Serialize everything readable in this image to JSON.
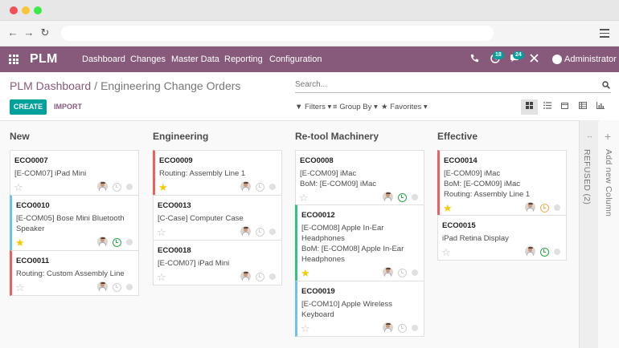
{
  "browser": {
    "dots": [
      "#f25056",
      "#fac536",
      "#39ea49"
    ]
  },
  "topbar": {
    "brand": "PLM",
    "menu": [
      "Dashboard",
      "Changes",
      "Master Data",
      "Reporting",
      "Configuration"
    ],
    "activity_badge": "18",
    "chat_badge": "24",
    "user": "Administrator",
    "color": "#875a7b"
  },
  "breadcrumb": {
    "parent": "PLM Dashboard",
    "separator": "/",
    "current": "Engineering Change Orders"
  },
  "search": {
    "placeholder": "Search..."
  },
  "buttons": {
    "create": "CREATE",
    "import": "IMPORT"
  },
  "filters": {
    "filters": "Filters",
    "group_by": "Group By",
    "favorites": "Favorites"
  },
  "columns": [
    {
      "title": "New",
      "cards": [
        {
          "ref": "ECO0007",
          "lines": [
            "[E-COM07] iPad Mini"
          ],
          "starred": false,
          "clock": "grey",
          "border": ""
        },
        {
          "ref": "ECO0010",
          "lines": [
            "[E-COM05] Bose Mini Bluetooth",
            "Speaker"
          ],
          "starred": true,
          "clock": "green",
          "border": "blue"
        },
        {
          "ref": "ECO0011",
          "lines": [
            "Routing: Custom Assembly Line"
          ],
          "starred": false,
          "clock": "grey",
          "border": "red"
        }
      ]
    },
    {
      "title": "Engineering",
      "cards": [
        {
          "ref": "ECO0009",
          "lines": [
            "Routing: Assembly Line 1"
          ],
          "starred": true,
          "clock": "grey",
          "border": "red"
        },
        {
          "ref": "ECO0013",
          "lines": [
            "[C-Case] Computer Case"
          ],
          "starred": false,
          "clock": "grey",
          "border": ""
        },
        {
          "ref": "ECO0018",
          "lines": [
            "[E-COM07] iPad Mini"
          ],
          "starred": false,
          "clock": "grey",
          "border": ""
        }
      ]
    },
    {
      "title": "Re-tool Machinery",
      "cards": [
        {
          "ref": "ECO0008",
          "lines": [
            "[E-COM09] iMac",
            "BoM: [E-COM09] iMac"
          ],
          "starred": false,
          "clock": "green",
          "border": ""
        },
        {
          "ref": "ECO0012",
          "lines": [
            "[E-COM08] Apple In-Ear",
            "Headphones",
            "BoM: [E-COM08] Apple In-Ear",
            "Headphones"
          ],
          "starred": true,
          "clock": "grey",
          "border": "green"
        },
        {
          "ref": "ECO0019",
          "lines": [
            "[E-COM10] Apple Wireless",
            "Keyboard"
          ],
          "starred": false,
          "clock": "grey",
          "border": "blue"
        }
      ]
    },
    {
      "title": "Effective",
      "cards": [
        {
          "ref": "ECO0014",
          "lines": [
            "[E-COM09] iMac",
            "BoM: [E-COM09] iMac",
            "Routing: Assembly Line 1"
          ],
          "starred": true,
          "clock": "orange",
          "border": "red"
        },
        {
          "ref": "ECO0015",
          "lines": [
            "iPad Retina Display"
          ],
          "starred": false,
          "clock": "green",
          "border": ""
        }
      ]
    }
  ],
  "folded_column": {
    "title": "REFUSED (2)"
  },
  "add_column": {
    "label": "Add new Column"
  }
}
